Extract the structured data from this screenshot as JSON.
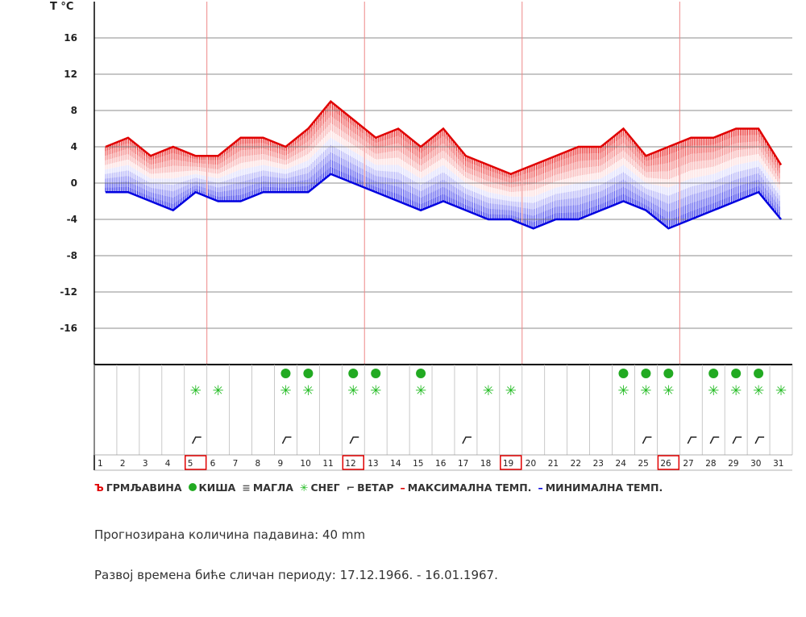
{
  "chart_data": {
    "type": "line",
    "y_axis_title": "T °C",
    "y_ticks": [
      16,
      12,
      8,
      4,
      0,
      -4,
      -8,
      -12,
      -16
    ],
    "ylim": [
      -20,
      20
    ],
    "days": [
      1,
      2,
      3,
      4,
      5,
      6,
      7,
      8,
      9,
      10,
      11,
      12,
      13,
      14,
      15,
      16,
      17,
      18,
      19,
      20,
      21,
      22,
      23,
      24,
      25,
      26,
      27,
      28,
      29,
      30,
      31
    ],
    "highlighted_days": [
      5,
      12,
      19,
      26
    ],
    "series": [
      {
        "name": "МАКСИМАЛНА ТЕМП.",
        "color": "#e00000",
        "values": [
          4,
          5,
          3,
          4,
          3,
          3,
          5,
          5,
          4,
          6,
          9,
          7,
          5,
          6,
          4,
          6,
          3,
          2,
          1,
          2,
          3,
          4,
          4,
          6,
          3,
          4,
          5,
          5,
          6,
          6,
          2
        ]
      },
      {
        "name": "МИНИМАЛНА ТЕМП.",
        "color": "#0000e0",
        "values": [
          -1,
          -1,
          -2,
          -3,
          -1,
          -2,
          -2,
          -1,
          -1,
          -1,
          1,
          0,
          -1,
          -2,
          -3,
          -2,
          -3,
          -4,
          -4,
          -5,
          -4,
          -4,
          -3,
          -2,
          -3,
          -5,
          -4,
          -3,
          -2,
          -1,
          -4
        ]
      }
    ],
    "snow_days": [
      5,
      6,
      9,
      10,
      12,
      13,
      15,
      18,
      19,
      24,
      25,
      26,
      28,
      29,
      30,
      31
    ],
    "rain_days": [
      9,
      10,
      12,
      13,
      15,
      24,
      25,
      26,
      28,
      29,
      30
    ],
    "wind_days": [
      5,
      9,
      12,
      17,
      25,
      27,
      28,
      29,
      30
    ],
    "grid": true
  },
  "legend": {
    "thunder_symbol": "Ъ",
    "thunder": "ГРМЉАВИНА",
    "rain": "КИША",
    "fog_symbol": "≡",
    "fog": "МАГЛА",
    "snow_symbol": "✳",
    "snow": "СНЕГ",
    "wind_symbol": "⌐",
    "wind": "ВЕТАР",
    "max_symbol": "–",
    "max": "МАКСИМАЛНА ТЕМП.",
    "min_symbol": "–",
    "min": "МИНИМАЛНА ТЕМП."
  },
  "colors": {
    "rain": "#22aa22",
    "snow": "#22bb22",
    "max": "#e00000",
    "min": "#0000e0",
    "day_highlight": "#e00000"
  },
  "info": {
    "precip": "Прогнозирана количина падавина:  40  mm",
    "period": "Развој времена биће сличан периоду: 17.12.1966. - 16.01.1967."
  }
}
